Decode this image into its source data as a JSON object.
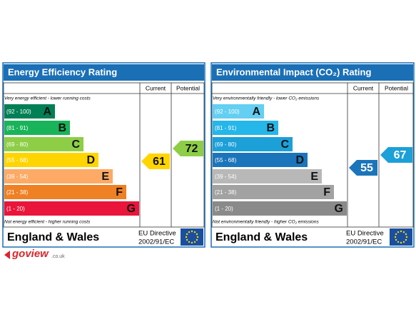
{
  "panels": [
    {
      "title": "Energy Efficiency Rating",
      "header": {
        "current": "Current",
        "potential": "Potential"
      },
      "top_note": "Very energy efficient - lower running costs",
      "bottom_note": "Not energy efficient - higher running costs",
      "bands": [
        {
          "range": "(92 - 100)",
          "letter": "A"
        },
        {
          "range": "(81 - 91)",
          "letter": "B"
        },
        {
          "range": "(69 - 80)",
          "letter": "C"
        },
        {
          "range": "(55 - 68)",
          "letter": "D"
        },
        {
          "range": "(39 - 54)",
          "letter": "E"
        },
        {
          "range": "(21 - 38)",
          "letter": "F"
        },
        {
          "range": "(1 - 20)",
          "letter": "G"
        }
      ],
      "current": 61,
      "potential": 72,
      "footer": {
        "country": "England & Wales",
        "directive": "EU Directive",
        "directive_code": "2002/91/EC"
      }
    },
    {
      "title": "Environmental Impact (CO₂) Rating",
      "header": {
        "current": "Current",
        "potential": "Potential"
      },
      "top_note": "Very environmentally friendly - lower CO₂ emissions",
      "bottom_note": "Not environmentally friendly - higher CO₂ emissions",
      "bands": [
        {
          "range": "(92 - 100)",
          "letter": "A"
        },
        {
          "range": "(81 - 91)",
          "letter": "B"
        },
        {
          "range": "(69 - 80)",
          "letter": "C"
        },
        {
          "range": "(55 - 68)",
          "letter": "D"
        },
        {
          "range": "(39 - 54)",
          "letter": "E"
        },
        {
          "range": "(21 - 38)",
          "letter": "F"
        },
        {
          "range": "(1 - 20)",
          "letter": "G"
        }
      ],
      "current": 55,
      "potential": 67,
      "footer": {
        "country": "England & Wales",
        "directive": "EU Directive",
        "directive_code": "2002/91/EC"
      }
    }
  ],
  "logo": {
    "name": "goview",
    "domain": ".co.uk"
  }
}
